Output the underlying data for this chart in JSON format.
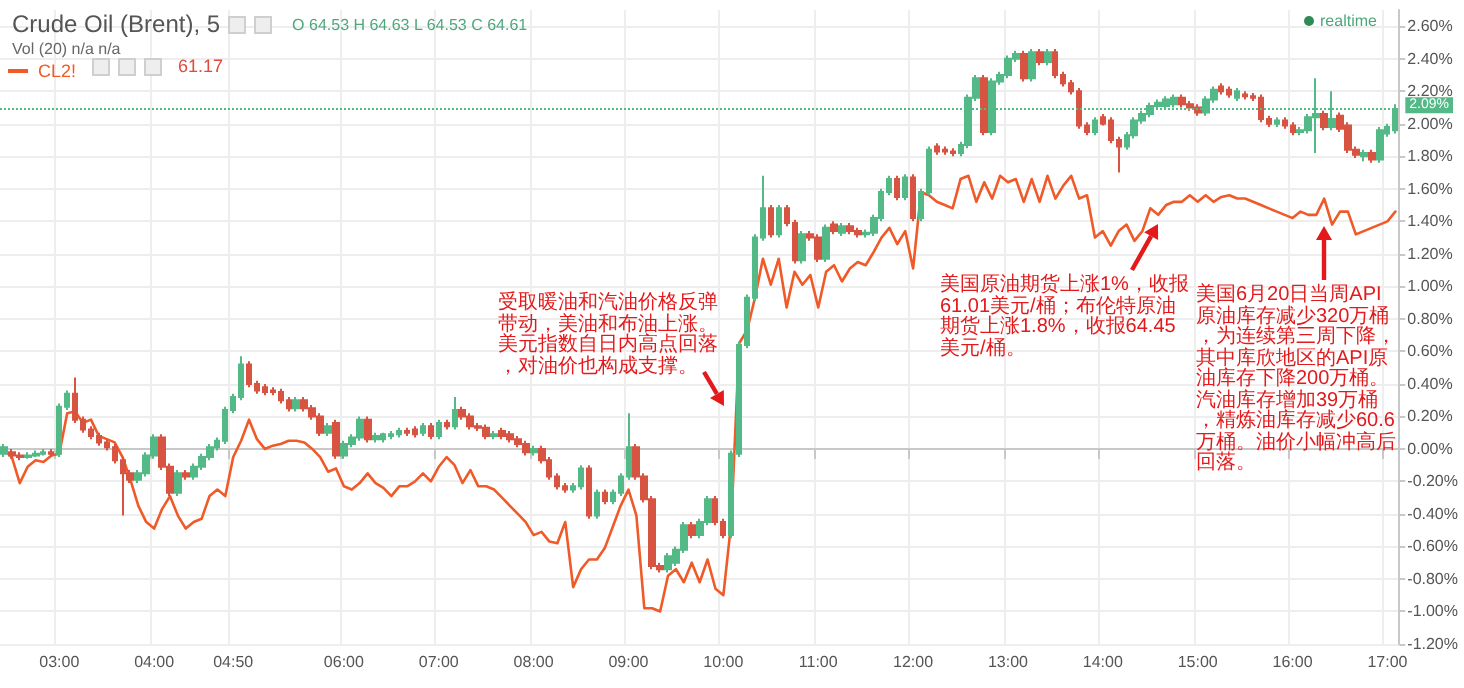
{
  "chart_data": {
    "type": "candlestick",
    "title": "Crude Oil (Brent), 5",
    "categories": [
      null,
      null,
      null,
      null,
      null,
      null,
      null,
      "03:00",
      null,
      null,
      null,
      null,
      null,
      null,
      null,
      null,
      null,
      null,
      null,
      "04:00",
      null,
      null,
      null,
      null,
      null,
      null,
      null,
      null,
      null,
      "04:50",
      null,
      null,
      null,
      null,
      null,
      null,
      null,
      null,
      null,
      null,
      null,
      null,
      null,
      "06:00",
      null,
      null,
      null,
      null,
      null,
      null,
      null,
      null,
      null,
      null,
      null,
      "07:00",
      null,
      null,
      null,
      null,
      null,
      null,
      null,
      null,
      null,
      null,
      null,
      "08:00",
      null,
      null,
      null,
      null,
      null,
      null,
      null,
      null,
      null,
      null,
      null,
      "09:00",
      null,
      null,
      null,
      null,
      null,
      null,
      null,
      null,
      null,
      null,
      null,
      "10:00",
      null,
      null,
      null,
      null,
      null,
      null,
      null,
      null,
      null,
      null,
      null,
      "11:00",
      null,
      null,
      null,
      null,
      null,
      null,
      null,
      null,
      null,
      null,
      null,
      "12:00",
      null,
      null,
      null,
      null,
      null,
      null,
      null,
      null,
      null,
      null,
      null,
      "13:00",
      null,
      null,
      null,
      null,
      null,
      null,
      null,
      null,
      null,
      null,
      null,
      "14:00",
      null,
      null,
      null,
      null,
      null,
      null,
      null,
      null,
      null,
      null,
      null,
      "15:00",
      null,
      null,
      null,
      null,
      null,
      null,
      null,
      null,
      null,
      null,
      null,
      "16:00",
      null,
      null,
      null,
      null,
      null,
      null,
      null,
      null,
      null,
      null,
      null,
      "17:00",
      null
    ],
    "series": [
      {
        "type": "candlestick",
        "colors": [
          "#53b987",
          "#d75442",
          "#d75442",
          "#53b987",
          "#53b987",
          "#53b987",
          "#d75442",
          "#53b987",
          "#53b987",
          "#d75442",
          "#d75442",
          "#d75442",
          "#d75442",
          "#d75442",
          "#d75442",
          "#d75442",
          "#d75442",
          "#53b987",
          "#53b987",
          "#53b987",
          "#d75442",
          "#d75442",
          "#53b987",
          "#d75442",
          "#53b987",
          "#53b987",
          "#53b987",
          "#53b987",
          "#53b987",
          "#53b987",
          "#53b987",
          "#d75442",
          "#d75442",
          "#d75442",
          "#d75442",
          "#d75442",
          "#d75442",
          "#53b987",
          "#d75442",
          "#d75442",
          "#d75442",
          "#53b987",
          "#d75442",
          "#53b987",
          "#53b987",
          "#53b987",
          "#d75442",
          "#53b987",
          "#53b987",
          "#53b987",
          "#53b987",
          "#d75442",
          "#d75442",
          "#53b987",
          "#d75442",
          "#53b987",
          "#d75442",
          "#53b987",
          "#d75442",
          "#d75442",
          "#d75442",
          "#d75442",
          "#53b987",
          "#d75442",
          "#d75442",
          "#d75442",
          "#d75442",
          "#53b987",
          "#d75442",
          "#d75442",
          "#d75442",
          "#d75442",
          "#53b987",
          "#53b987",
          "#d75442",
          "#53b987",
          "#d75442",
          "#53b987",
          "#53b987",
          "#53b987",
          "#d75442",
          "#d75442",
          "#d75442",
          "#d75442",
          "#53b987",
          "#53b987",
          "#53b987",
          "#d75442",
          "#53b987",
          "#53b987",
          "#d75442",
          "#d75442",
          "#53b987",
          "#53b987",
          "#53b987",
          "#53b987",
          "#53b987",
          "#d75442",
          "#53b987",
          "#d75442",
          "#d75442",
          "#53b987",
          "#d75442",
          "#d75442",
          "#53b987",
          "#d75442",
          "#53b987",
          "#d75442",
          "#d75442",
          "#53b987",
          "#53b987",
          "#53b987",
          "#53b987",
          "#d75442",
          "#53b987",
          "#d75442",
          "#53b987",
          "#53b987",
          "#d75442",
          "#d75442",
          "#d75442",
          "#53b987",
          "#53b987",
          "#53b987",
          "#d75442",
          "#53b987",
          "#53b987",
          "#53b987",
          "#53b987",
          "#d75442",
          "#53b987",
          "#d75442",
          "#53b987",
          "#d75442",
          "#d75442",
          "#d75442",
          "#d75442",
          "#d75442",
          "#53b987",
          "#d75442",
          "#d75442",
          "#d75442",
          "#53b987",
          "#53b987",
          "#53b987",
          "#53b987",
          "#53b987",
          "#53b987",
          "#53b987",
          "#d75442",
          "#d75442",
          "#d75442",
          "#53b987",
          "#53b987",
          "#d75442",
          "#d75442",
          "#53b987",
          "#d75442",
          "#d75442",
          "#d75442",
          "#d75442",
          "#53b987",
          "#d75442",
          "#d75442",
          "#53b987",
          "#53b987",
          "#53b987",
          "#d75442",
          "#53b987",
          "#d75442",
          "#d75442",
          "#d75442",
          "#53b987",
          "#d75442",
          "#53b987",
          "#53b987",
          "#53b987"
        ],
        "ohlc": [
          [
            -0.03,
            0.03,
            -0.05,
            0.01
          ],
          [
            -0.02,
            0.0,
            -0.06,
            -0.04
          ],
          [
            -0.04,
            -0.02,
            -0.07,
            -0.05
          ],
          [
            -0.05,
            -0.02,
            -0.06,
            -0.04
          ],
          [
            -0.04,
            -0.01,
            -0.05,
            -0.03
          ],
          [
            -0.03,
            0.0,
            -0.04,
            -0.02
          ],
          [
            -0.02,
            0.0,
            -0.05,
            -0.03
          ],
          [
            -0.03,
            0.28,
            -0.05,
            0.26
          ],
          [
            0.26,
            0.36,
            0.24,
            0.34
          ],
          [
            0.34,
            0.44,
            0.16,
            0.18
          ],
          [
            0.18,
            0.2,
            0.1,
            0.12
          ],
          [
            0.12,
            0.14,
            0.06,
            0.08
          ],
          [
            0.08,
            0.1,
            0.02,
            0.04
          ],
          [
            0.04,
            0.06,
            -0.01,
            0.01
          ],
          [
            0.01,
            0.03,
            -0.09,
            -0.07
          ],
          [
            -0.07,
            -0.05,
            -0.41,
            -0.15
          ],
          [
            -0.15,
            -0.13,
            -0.21,
            -0.19
          ],
          [
            -0.19,
            -0.13,
            -0.21,
            -0.15
          ],
          [
            -0.15,
            -0.02,
            -0.17,
            -0.04
          ],
          [
            -0.04,
            0.09,
            -0.06,
            0.07
          ],
          [
            0.07,
            0.09,
            -0.13,
            -0.11
          ],
          [
            -0.11,
            -0.09,
            -0.29,
            -0.27
          ],
          [
            -0.27,
            -0.13,
            -0.29,
            -0.15
          ],
          [
            -0.15,
            -0.13,
            -0.19,
            -0.17
          ],
          [
            -0.17,
            -0.09,
            -0.19,
            -0.11
          ],
          [
            -0.11,
            -0.03,
            -0.13,
            -0.05
          ],
          [
            -0.05,
            0.03,
            -0.07,
            0.01
          ],
          [
            0.01,
            0.07,
            -0.01,
            0.05
          ],
          [
            0.05,
            0.26,
            0.03,
            0.24
          ],
          [
            0.24,
            0.34,
            0.22,
            0.32
          ],
          [
            0.32,
            0.57,
            0.3,
            0.52
          ],
          [
            0.52,
            0.54,
            0.38,
            0.4
          ],
          [
            0.4,
            0.42,
            0.34,
            0.36
          ],
          [
            0.38,
            0.4,
            0.33,
            0.35
          ],
          [
            0.36,
            0.38,
            0.33,
            0.35
          ],
          [
            0.35,
            0.37,
            0.28,
            0.3
          ],
          [
            0.3,
            0.32,
            0.23,
            0.25
          ],
          [
            0.25,
            0.32,
            0.23,
            0.3
          ],
          [
            0.3,
            0.32,
            0.23,
            0.25
          ],
          [
            0.25,
            0.27,
            0.18,
            0.2
          ],
          [
            0.2,
            0.22,
            0.08,
            0.1
          ],
          [
            0.1,
            0.16,
            0.08,
            0.14
          ],
          [
            0.16,
            0.18,
            -0.06,
            -0.04
          ],
          [
            -0.04,
            0.05,
            -0.06,
            0.03
          ],
          [
            0.03,
            0.09,
            0.01,
            0.07
          ],
          [
            0.07,
            0.2,
            0.05,
            0.18
          ],
          [
            0.18,
            0.2,
            0.04,
            0.06
          ],
          [
            0.06,
            0.1,
            0.04,
            0.08
          ],
          [
            0.06,
            0.1,
            0.04,
            0.09
          ],
          [
            0.08,
            0.11,
            0.06,
            0.09
          ],
          [
            0.09,
            0.13,
            0.07,
            0.11
          ],
          [
            0.11,
            0.13,
            0.08,
            0.1
          ],
          [
            0.12,
            0.14,
            0.07,
            0.09
          ],
          [
            0.1,
            0.16,
            0.08,
            0.14
          ],
          [
            0.14,
            0.16,
            0.06,
            0.08
          ],
          [
            0.08,
            0.18,
            0.06,
            0.16
          ],
          [
            0.16,
            0.18,
            0.12,
            0.14
          ],
          [
            0.14,
            0.32,
            0.12,
            0.24
          ],
          [
            0.24,
            0.26,
            0.18,
            0.2
          ],
          [
            0.2,
            0.22,
            0.12,
            0.14
          ],
          [
            0.14,
            0.16,
            0.11,
            0.13
          ],
          [
            0.13,
            0.15,
            0.06,
            0.08
          ],
          [
            0.08,
            0.11,
            0.06,
            0.09
          ],
          [
            0.11,
            0.13,
            0.06,
            0.08
          ],
          [
            0.09,
            0.11,
            0.04,
            0.06
          ],
          [
            0.06,
            0.08,
            0.01,
            0.03
          ],
          [
            0.03,
            0.05,
            -0.04,
            -0.02
          ],
          [
            -0.02,
            0.02,
            -0.04,
            0.0
          ],
          [
            0.0,
            0.02,
            -0.09,
            -0.07
          ],
          [
            -0.07,
            -0.05,
            -0.19,
            -0.17
          ],
          [
            -0.17,
            -0.15,
            -0.25,
            -0.23
          ],
          [
            -0.23,
            -0.21,
            -0.27,
            -0.25
          ],
          [
            -0.25,
            -0.21,
            -0.27,
            -0.23
          ],
          [
            -0.23,
            -0.1,
            -0.25,
            -0.12
          ],
          [
            -0.12,
            -0.1,
            -0.43,
            -0.41
          ],
          [
            -0.41,
            -0.25,
            -0.43,
            -0.27
          ],
          [
            -0.27,
            -0.25,
            -0.34,
            -0.32
          ],
          [
            -0.32,
            -0.25,
            -0.34,
            -0.27
          ],
          [
            -0.27,
            -0.15,
            -0.29,
            -0.17
          ],
          [
            -0.17,
            0.22,
            -0.19,
            0.01
          ],
          [
            0.01,
            0.03,
            -0.19,
            -0.17
          ],
          [
            -0.17,
            -0.15,
            -0.33,
            -0.31
          ],
          [
            -0.31,
            -0.29,
            -0.74,
            -0.72
          ],
          [
            -0.72,
            -0.7,
            -0.76,
            -0.74
          ],
          [
            -0.74,
            -0.64,
            -0.76,
            -0.66
          ],
          [
            -0.7,
            -0.6,
            -0.72,
            -0.62
          ],
          [
            -0.62,
            -0.45,
            -0.64,
            -0.47
          ],
          [
            -0.47,
            -0.45,
            -0.55,
            -0.53
          ],
          [
            -0.53,
            -0.43,
            -0.55,
            -0.45
          ],
          [
            -0.45,
            -0.29,
            -0.47,
            -0.31
          ],
          [
            -0.31,
            -0.29,
            -0.47,
            -0.45
          ],
          [
            -0.45,
            -0.43,
            -0.55,
            -0.53
          ],
          [
            -0.53,
            -0.01,
            -0.55,
            -0.03
          ],
          [
            -0.03,
            0.66,
            -0.05,
            0.64
          ],
          [
            0.64,
            0.95,
            0.62,
            0.93
          ],
          [
            0.93,
            1.32,
            0.91,
            1.3
          ],
          [
            1.3,
            1.68,
            1.28,
            1.48
          ],
          [
            1.48,
            1.5,
            1.3,
            1.32
          ],
          [
            1.32,
            1.5,
            1.3,
            1.48
          ],
          [
            1.48,
            1.5,
            1.37,
            1.39
          ],
          [
            1.39,
            1.41,
            1.14,
            1.16
          ],
          [
            1.16,
            1.34,
            1.14,
            1.32
          ],
          [
            1.32,
            1.34,
            1.28,
            1.3
          ],
          [
            1.3,
            1.32,
            1.15,
            1.17
          ],
          [
            1.17,
            1.38,
            1.15,
            1.36
          ],
          [
            1.38,
            1.4,
            1.32,
            1.34
          ],
          [
            1.33,
            1.39,
            1.31,
            1.37
          ],
          [
            1.37,
            1.39,
            1.32,
            1.34
          ],
          [
            1.34,
            1.36,
            1.3,
            1.32
          ],
          [
            1.32,
            1.35,
            1.3,
            1.33
          ],
          [
            1.33,
            1.44,
            1.31,
            1.42
          ],
          [
            1.42,
            1.6,
            1.4,
            1.58
          ],
          [
            1.58,
            1.68,
            1.56,
            1.66
          ],
          [
            1.66,
            1.68,
            1.53,
            1.55
          ],
          [
            1.55,
            1.69,
            1.53,
            1.67
          ],
          [
            1.67,
            1.69,
            1.4,
            1.42
          ],
          [
            1.42,
            1.6,
            1.4,
            1.58
          ],
          [
            1.58,
            1.86,
            1.56,
            1.84
          ],
          [
            1.86,
            1.88,
            1.81,
            1.83
          ],
          [
            1.84,
            1.86,
            1.81,
            1.83
          ],
          [
            1.83,
            1.85,
            1.8,
            1.82
          ],
          [
            1.82,
            1.89,
            1.8,
            1.87
          ],
          [
            1.87,
            2.18,
            1.85,
            2.16
          ],
          [
            2.16,
            2.3,
            2.14,
            2.28
          ],
          [
            2.28,
            2.3,
            1.93,
            1.95
          ],
          [
            1.95,
            2.28,
            1.93,
            2.26
          ],
          [
            2.26,
            2.32,
            2.24,
            2.3
          ],
          [
            2.3,
            2.42,
            2.28,
            2.4
          ],
          [
            2.4,
            2.45,
            2.38,
            2.43
          ],
          [
            2.43,
            2.45,
            2.26,
            2.28
          ],
          [
            2.28,
            2.46,
            2.26,
            2.44
          ],
          [
            2.44,
            2.46,
            2.36,
            2.38
          ],
          [
            2.38,
            2.46,
            2.36,
            2.44
          ],
          [
            2.44,
            2.46,
            2.28,
            2.3
          ],
          [
            2.3,
            2.32,
            2.23,
            2.25
          ],
          [
            2.25,
            2.27,
            2.18,
            2.2
          ],
          [
            2.2,
            2.22,
            1.97,
            1.99
          ],
          [
            1.99,
            2.01,
            1.93,
            1.95
          ],
          [
            1.95,
            2.04,
            1.93,
            2.02
          ],
          [
            2.04,
            2.06,
            1.99,
            2.0
          ],
          [
            2.02,
            2.04,
            1.88,
            1.9
          ],
          [
            1.9,
            1.92,
            1.7,
            1.86
          ],
          [
            1.86,
            1.95,
            1.84,
            1.93
          ],
          [
            1.93,
            2.04,
            1.91,
            2.02
          ],
          [
            2.02,
            2.08,
            2.0,
            2.06
          ],
          [
            2.06,
            2.13,
            2.04,
            2.11
          ],
          [
            2.11,
            2.15,
            2.09,
            2.13
          ],
          [
            2.11,
            2.17,
            2.09,
            2.15
          ],
          [
            2.12,
            2.18,
            2.1,
            2.16
          ],
          [
            2.16,
            2.18,
            2.1,
            2.12
          ],
          [
            2.12,
            2.14,
            2.08,
            2.1
          ],
          [
            2.1,
            2.12,
            2.05,
            2.07
          ],
          [
            2.07,
            2.17,
            2.05,
            2.15
          ],
          [
            2.15,
            2.23,
            2.13,
            2.21
          ],
          [
            2.23,
            2.25,
            2.18,
            2.2
          ],
          [
            2.21,
            2.23,
            2.16,
            2.18
          ],
          [
            2.16,
            2.22,
            2.14,
            2.2
          ],
          [
            2.18,
            2.2,
            2.15,
            2.17
          ],
          [
            2.17,
            2.19,
            2.14,
            2.16
          ],
          [
            2.16,
            2.18,
            2.01,
            2.03
          ],
          [
            2.03,
            2.05,
            1.98,
            2.0
          ],
          [
            2.0,
            2.04,
            1.98,
            2.02
          ],
          [
            2.02,
            2.04,
            1.97,
            1.99
          ],
          [
            1.99,
            2.01,
            1.93,
            1.95
          ],
          [
            1.95,
            1.98,
            1.93,
            1.96
          ],
          [
            1.96,
            2.06,
            1.94,
            2.04
          ],
          [
            2.04,
            2.28,
            1.82,
            2.06
          ],
          [
            2.06,
            2.08,
            1.96,
            1.98
          ],
          [
            1.98,
            2.2,
            1.96,
            2.03
          ],
          [
            2.05,
            2.07,
            1.95,
            1.97
          ],
          [
            1.99,
            2.01,
            1.82,
            1.84
          ],
          [
            1.84,
            1.86,
            1.79,
            1.81
          ],
          [
            1.8,
            1.84,
            1.77,
            1.82
          ],
          [
            1.82,
            1.84,
            1.76,
            1.78
          ],
          [
            1.78,
            1.98,
            1.76,
            1.96
          ],
          [
            1.94,
            2.0,
            1.92,
            1.98
          ],
          [
            1.96,
            2.12,
            1.94,
            2.09
          ]
        ]
      },
      {
        "type": "line",
        "name": "CL2!",
        "color": "#f05a28",
        "values": [
          -0.01,
          -0.05,
          -0.21,
          -0.11,
          -0.07,
          -0.08,
          -0.04,
          -0.03,
          0.22,
          0.23,
          0.16,
          0.18,
          0.08,
          0.06,
          0.04,
          -0.05,
          -0.19,
          -0.35,
          -0.45,
          -0.49,
          -0.37,
          -0.29,
          -0.41,
          -0.49,
          -0.45,
          -0.43,
          -0.29,
          -0.25,
          -0.29,
          -0.05,
          0.05,
          0.18,
          0.06,
          0.0,
          0.02,
          0.03,
          0.05,
          0.05,
          0.04,
          0.0,
          -0.05,
          -0.14,
          -0.12,
          -0.23,
          -0.25,
          -0.21,
          -0.15,
          -0.21,
          -0.24,
          -0.29,
          -0.23,
          -0.23,
          -0.2,
          -0.15,
          -0.2,
          -0.11,
          -0.05,
          -0.1,
          -0.21,
          -0.13,
          -0.23,
          -0.23,
          -0.25,
          -0.3,
          -0.35,
          -0.4,
          -0.45,
          -0.53,
          -0.51,
          -0.57,
          -0.58,
          -0.45,
          -0.85,
          -0.74,
          -0.68,
          -0.68,
          -0.61,
          -0.48,
          -0.35,
          -0.25,
          -0.41,
          -0.98,
          -0.98,
          -1.0,
          -0.78,
          -0.74,
          -0.82,
          -0.7,
          -0.82,
          -0.68,
          -0.86,
          -0.9,
          -0.45,
          0.65,
          0.73,
          0.93,
          1.17,
          1.01,
          1.17,
          0.87,
          1.09,
          1.01,
          1.07,
          0.87,
          1.09,
          1.13,
          1.03,
          1.11,
          1.15,
          1.13,
          1.21,
          1.3,
          1.36,
          1.26,
          1.34,
          1.11,
          1.58,
          1.56,
          1.52,
          1.5,
          1.48,
          1.66,
          1.68,
          1.52,
          1.64,
          1.54,
          1.68,
          1.64,
          1.66,
          1.52,
          1.66,
          1.52,
          1.68,
          1.54,
          1.62,
          1.68,
          1.54,
          1.56,
          1.3,
          1.34,
          1.25,
          1.34,
          1.38,
          1.28,
          1.34,
          1.48,
          1.44,
          1.5,
          1.52,
          1.52,
          1.56,
          1.52,
          1.56,
          1.52,
          1.55,
          1.56,
          1.54,
          1.54,
          1.52,
          1.5,
          1.48,
          1.46,
          1.44,
          1.42,
          1.46,
          1.44,
          1.44,
          1.54,
          1.38,
          1.46,
          1.46,
          1.32,
          1.34,
          1.36,
          1.38,
          1.4,
          1.46
        ]
      }
    ],
    "ylim": [
      -1.2,
      2.7
    ],
    "yticks": [
      {
        "value": -1.2,
        "label": "-1.20%"
      },
      {
        "value": -1.0,
        "label": "-1.00%"
      },
      {
        "value": -0.8,
        "label": "-0.80%"
      },
      {
        "value": -0.6,
        "label": "-0.60%"
      },
      {
        "value": -0.4,
        "label": "-0.40%"
      },
      {
        "value": -0.2,
        "label": "-0.20%"
      },
      {
        "value": 0,
        "label": "0.00%"
      },
      {
        "value": 0.2,
        "label": "0.20%"
      },
      {
        "value": 0.4,
        "label": "0.40%"
      },
      {
        "value": 0.6,
        "label": "0.60%"
      },
      {
        "value": 0.8,
        "label": "0.80%"
      },
      {
        "value": 1.0,
        "label": "1.00%"
      },
      {
        "value": 1.2,
        "label": "1.20%"
      },
      {
        "value": 1.4,
        "label": "1.40%"
      },
      {
        "value": 1.6,
        "label": "1.60%"
      },
      {
        "value": 1.8,
        "label": "1.80%"
      },
      {
        "value": 2.0,
        "label": "2.00%"
      },
      {
        "value": 2.2,
        "label": "2.20%"
      },
      {
        "value": 2.4,
        "label": "2.40%"
      },
      {
        "value": 2.6,
        "label": "2.60%"
      }
    ],
    "grid": true,
    "legend": "top left",
    "marker": "none",
    "line_style": "solid",
    "ref_lines": [
      {
        "axis": "y",
        "value": 2.09,
        "label": "2.09%",
        "color": "#53b987",
        "line_style": "dotted"
      }
    ],
    "annotations": [
      "O 64.53 H 64.63 L 64.53 C 64.61",
      "Vol (20) n/a n/a",
      "61.17",
      "realtime",
      "受取暖油和汽油价格反弹带动，美油和布油上涨。美元指数自日内高点回落，对油价也构成支撑。",
      "美国原油期货上涨1%，收报61.01美元/桶；布伦特原油期货上涨1.8%，收报64.45美元/桶。",
      "美国6月20日当周API原油库存减少320万桶，为连续第三周下降，其中库欣地区的API原油库存下降200万桶。汽油库存增加39万桶，精炼油库存减少60.6万桶。油价小幅冲高后回落。"
    ]
  }
}
